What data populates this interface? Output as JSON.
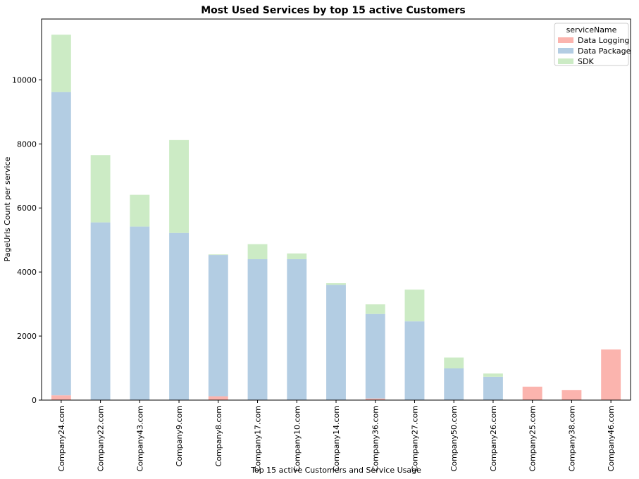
{
  "chart_data": {
    "type": "bar",
    "stacked": true,
    "title": "Most Used Services by top 15 active Customers",
    "xlabel": "Top 15 active Customers and Service Usage",
    "ylabel": "PageUrls Count per service",
    "ylim": [
      0,
      11900
    ],
    "yticks": [
      0,
      2000,
      4000,
      6000,
      8000,
      10000
    ],
    "grid": false,
    "legend": {
      "title": "serviceName",
      "placement": "top-right"
    },
    "categories": [
      "Company24.com",
      "Company22.com",
      "Company43.com",
      "Company9.com",
      "Company8.com",
      "Company17.com",
      "Company10.com",
      "Company14.com",
      "Company36.com",
      "Company27.com",
      "Company50.com",
      "Company26.com",
      "Company25.com",
      "Company38.com",
      "Company46.com"
    ],
    "series": [
      {
        "name": "Data Logging",
        "color": "#fbb4ae",
        "values": [
          150,
          0,
          0,
          0,
          120,
          0,
          0,
          0,
          50,
          0,
          0,
          0,
          420,
          310,
          1580
        ]
      },
      {
        "name": "Data Package",
        "color": "#b3cde3",
        "values": [
          9470,
          5550,
          5420,
          5220,
          4410,
          4400,
          4400,
          3600,
          2640,
          2460,
          990,
          730,
          0,
          0,
          0
        ]
      },
      {
        "name": "SDK",
        "color": "#ccebc5",
        "values": [
          1790,
          2100,
          990,
          2900,
          20,
          470,
          180,
          50,
          300,
          990,
          340,
          100,
          0,
          0,
          0
        ]
      }
    ]
  }
}
